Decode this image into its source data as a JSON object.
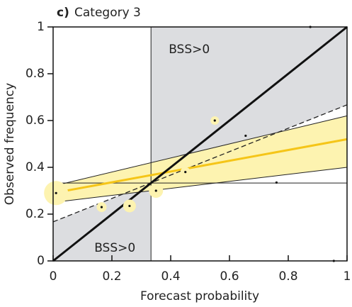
{
  "chart_data": {
    "type": "reliability",
    "title_label": "c)",
    "title": "Category 3",
    "xlabel": "Forecast probability",
    "ylabel": "Observed frequency",
    "xlim": [
      0,
      1
    ],
    "ylim": [
      0,
      1
    ],
    "xticks": [
      0,
      0.2,
      0.4,
      0.6,
      0.8,
      1
    ],
    "yticks": [
      0,
      0.2,
      0.4,
      0.6,
      0.8,
      1
    ],
    "climatology": 0.333,
    "annotations": [
      "BSS>0",
      "BSS>0"
    ],
    "diagonal": {
      "x": [
        0,
        1
      ],
      "y": [
        0,
        1
      ]
    },
    "no_skill": {
      "x": [
        0,
        1
      ],
      "y": [
        0.167,
        0.667
      ]
    },
    "regression": {
      "x": [
        0,
        1
      ],
      "y": [
        0.29,
        0.52
      ],
      "color": "#f5c518"
    },
    "band": {
      "x": [
        0,
        1
      ],
      "lower": [
        0.25,
        0.4
      ],
      "upper": [
        0.32,
        0.62
      ],
      "color": "#fdf3b0"
    },
    "points": {
      "x": [
        0.01,
        0.165,
        0.26,
        0.35,
        0.45,
        0.55,
        0.655,
        0.76,
        0.875,
        0.955
      ],
      "y": [
        0.29,
        0.23,
        0.235,
        0.3,
        0.38,
        0.6,
        0.535,
        0.335,
        1.0,
        0.0
      ],
      "sizes": [
        289,
        49,
        81,
        100,
        49,
        36,
        0,
        0,
        0,
        0
      ],
      "halo_color": "#fdf3b0"
    },
    "shade_color": "#dcdde0"
  }
}
